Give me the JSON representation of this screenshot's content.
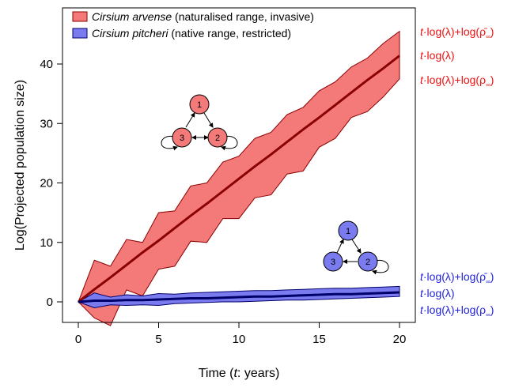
{
  "chart_data": {
    "type": "area",
    "title": "",
    "xlabel_parts": [
      "Time (",
      "t",
      ": years)"
    ],
    "ylabel": "Log(Projected population size)",
    "xlim": [
      0,
      20
    ],
    "ylim": [
      -4,
      46
    ],
    "xticks": [
      0,
      5,
      10,
      15,
      20
    ],
    "yticks": [
      0,
      10,
      20,
      30,
      40
    ],
    "grid": false,
    "legend_position": "top-left",
    "x": [
      0,
      1,
      2,
      3,
      4,
      5,
      6,
      7,
      8,
      9,
      10,
      11,
      12,
      13,
      14,
      15,
      16,
      17,
      18,
      19,
      20
    ],
    "series": [
      {
        "name_italic": "Cirsium arvense",
        "name_rest": " (naturalised range, invasive)",
        "color": "#8b0000",
        "fill_color": "#f47a7a",
        "center": [
          0,
          2.1,
          4.1,
          6.2,
          8.3,
          10.3,
          12.4,
          14.5,
          16.5,
          18.6,
          20.7,
          22.8,
          24.8,
          26.9,
          29.0,
          31.0,
          33.1,
          35.2,
          37.3,
          39.3,
          41.4
        ],
        "upper": [
          0,
          7.0,
          6.0,
          10.5,
          10.0,
          15.0,
          15.3,
          19.5,
          20.0,
          23.5,
          24.5,
          27.5,
          28.5,
          31.5,
          32.7,
          35.5,
          37.0,
          39.5,
          41.0,
          43.5,
          45.5
        ],
        "lower": [
          0,
          -2.7,
          -4.0,
          2.0,
          1.0,
          5.5,
          6.0,
          10.2,
          10.0,
          14.0,
          14.0,
          17.5,
          18.0,
          21.5,
          22.0,
          26.0,
          27.5,
          31.0,
          32.0,
          34.5,
          37.5
        ]
      },
      {
        "name_italic": "Cirsium pitcheri",
        "name_rest": " (native range, restricted)",
        "color": "#00006b",
        "fill_color": "#7b7bf0",
        "center": [
          0,
          0.2,
          0.2,
          0.3,
          0.3,
          0.4,
          0.5,
          0.6,
          0.6,
          0.7,
          0.8,
          0.9,
          0.9,
          1.0,
          1.1,
          1.2,
          1.3,
          1.3,
          1.4,
          1.5,
          1.6
        ],
        "upper": [
          0,
          1.5,
          0.8,
          1.2,
          1.0,
          1.4,
          1.3,
          1.5,
          1.6,
          1.7,
          1.8,
          1.9,
          1.9,
          2.0,
          2.1,
          2.2,
          2.3,
          2.3,
          2.4,
          2.5,
          2.6
        ],
        "lower": [
          0,
          -1.0,
          -0.5,
          -0.6,
          -0.5,
          -0.6,
          -0.3,
          -0.2,
          -0.1,
          0.0,
          0.0,
          0.1,
          0.2,
          0.3,
          0.3,
          0.4,
          0.5,
          0.6,
          0.7,
          0.8,
          0.9
        ]
      }
    ],
    "annotations": {
      "red": {
        "color": "#ee1111",
        "upper": {
          "t": "t",
          "mid": "·log(λ)+log(",
          "rho": "ρ̄",
          "sub": "∞",
          "close": ")"
        },
        "middle": {
          "t": "t",
          "mid": "·log(λ)"
        },
        "lower": {
          "t": "t",
          "mid": "·log(λ)+log(",
          "rho": "ρ",
          "sub": "∞",
          "close": ")"
        }
      },
      "blue": {
        "color": "#2222dd",
        "upper": {
          "t": "t",
          "mid": "·log(λ)+log(",
          "rho": "ρ̄",
          "sub": "∞",
          "close": ")"
        },
        "middle": {
          "t": "t",
          "mid": "·log(λ)"
        },
        "lower": {
          "t": "t",
          "mid": "·log(λ)+log(",
          "rho": "ρ",
          "sub": "∞",
          "close": ")"
        }
      }
    },
    "life_cycle_graphs": [
      {
        "color": "#f47a7a",
        "nodes": [
          "1",
          "2",
          "3"
        ]
      },
      {
        "color": "#7b7bf0",
        "nodes": [
          "1",
          "2",
          "3"
        ]
      }
    ]
  }
}
